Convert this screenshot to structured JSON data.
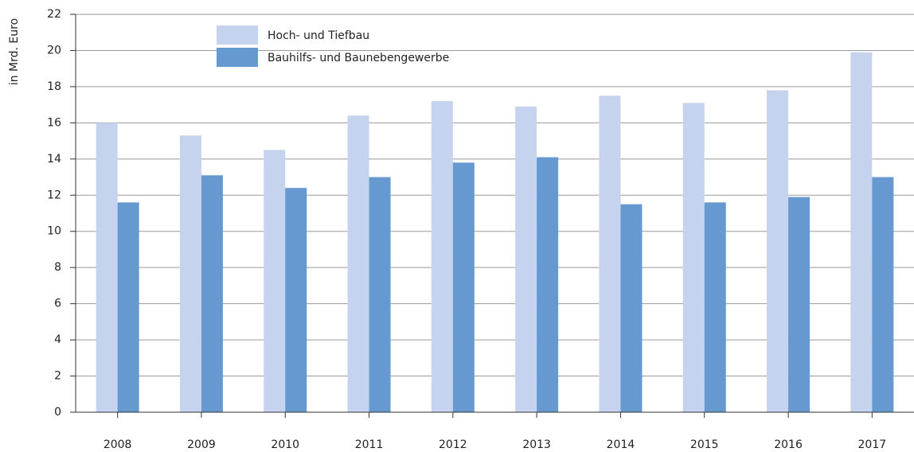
{
  "chart_data": {
    "type": "bar",
    "y_label": "in Mrd. Euro",
    "categories": [
      "2008",
      "2009",
      "2010",
      "2011",
      "2012",
      "2013",
      "2014",
      "2015",
      "2016",
      "2017"
    ],
    "series": [
      {
        "name": "Hoch- und Tiefbau",
        "color": "#c5d3ee",
        "values": [
          16.0,
          15.3,
          14.5,
          16.4,
          17.2,
          16.9,
          17.5,
          17.1,
          17.8,
          19.9
        ]
      },
      {
        "name": "Bauhilfs- und Baunebengewerbe",
        "color": "#6699d0",
        "values": [
          11.6,
          13.1,
          12.4,
          13.0,
          13.8,
          14.1,
          11.5,
          11.6,
          11.9,
          13.0
        ]
      }
    ],
    "ylim": [
      0,
      22
    ],
    "yticks": [
      0,
      2,
      4,
      6,
      8,
      10,
      12,
      14,
      16,
      18,
      20,
      22
    ],
    "grid": true,
    "legend": "top-left"
  }
}
